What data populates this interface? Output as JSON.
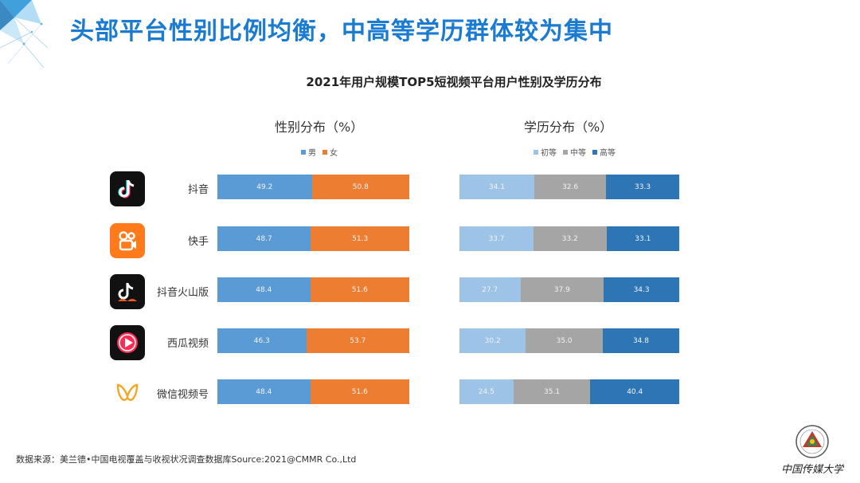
{
  "headline": "头部平台性别比例均衡，中高等学历群体较为集中",
  "chart_data": [
    {
      "type": "bar",
      "orientation": "horizontal-stacked-100",
      "title": "2021年用户规模TOP5短视频平台用户性别及学历分布",
      "subtitle": "性别分布（%）",
      "categories": [
        "抖音",
        "快手",
        "抖音火山版",
        "西瓜视频",
        "微信视频号"
      ],
      "series": [
        {
          "name": "男",
          "color": "#5b9bd5",
          "values": [
            49.2,
            48.7,
            48.4,
            46.3,
            48.4
          ]
        },
        {
          "name": "女",
          "color": "#ed7d31",
          "values": [
            50.8,
            51.3,
            51.6,
            53.7,
            51.6
          ]
        }
      ],
      "xlim": [
        0,
        100
      ]
    },
    {
      "type": "bar",
      "orientation": "horizontal-stacked-100",
      "subtitle": "学历分布（%）",
      "categories": [
        "抖音",
        "快手",
        "抖音火山版",
        "西瓜视频",
        "微信视频号"
      ],
      "series": [
        {
          "name": "初等",
          "color": "#9dc3e6",
          "values": [
            34.1,
            33.7,
            27.7,
            30.2,
            24.5
          ]
        },
        {
          "name": "中等",
          "color": "#a5a5a5",
          "values": [
            32.6,
            33.2,
            37.9,
            35.0,
            35.1
          ]
        },
        {
          "name": "高等",
          "color": "#2e75b6",
          "values": [
            33.3,
            33.1,
            34.3,
            34.8,
            40.4
          ]
        }
      ],
      "xlim": [
        0,
        100
      ]
    }
  ],
  "source_note": "数据来源：美兰德•中国电视覆盖与收视状况调查数据库Source:2021@CMMR Co.,Ltd",
  "logo_text": "中国传媒大学",
  "colors": {
    "headline": "#1a7bd0",
    "accent": "#1a7bd0"
  }
}
